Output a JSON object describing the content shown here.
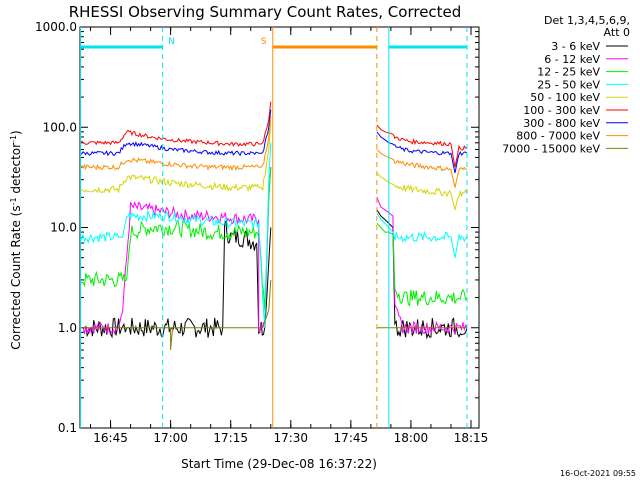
{
  "chart_data": {
    "type": "line",
    "title": "RHESSI Observing Summary Count Rates, Corrected",
    "xlabel": "Start Time (29-Dec-08 16:37:22)",
    "ylabel_main": "Corrected Count Rate (s",
    "ylabel_sup1": "-1",
    "ylabel_mid": " detector",
    "ylabel_sup2": "-1",
    "ylabel_end": ")",
    "y_scale": "log",
    "xlim": [
      "16:37:22",
      "18:17:00"
    ],
    "ylim": [
      0.1,
      1000
    ],
    "x_ticks": [
      "16:45",
      "17:00",
      "17:15",
      "17:30",
      "17:45",
      "18:00",
      "18:15"
    ],
    "y_ticks": [
      "0.1",
      "1.0",
      "10.0",
      "100.0",
      "1000.0"
    ],
    "legend_header": [
      "Det 1,3,4,5,6,9,",
      "Att 0"
    ],
    "legend_position": "top-right, outside plot",
    "timestamp": "16-Oct-2021 09:55",
    "annotations": [
      {
        "label": "N",
        "color": "#00e5ee",
        "time": "16:58:00"
      },
      {
        "label": "S",
        "color": "#ff8c00",
        "time": "17:25:30"
      }
    ],
    "time_bars": [
      {
        "type": "night",
        "color": "#00e5ee",
        "start": "16:37:30",
        "end": "16:58:00",
        "end_style": "dashed"
      },
      {
        "type": "saa",
        "color": "#ff8c00",
        "start": "17:25:30",
        "end": "17:51:30",
        "end_style": "dashed"
      },
      {
        "type": "night",
        "color": "#00e5ee",
        "start": "17:54:30",
        "end": "18:14:00",
        "end_style": "dashed"
      }
    ],
    "series": [
      {
        "name": "3 - 6 keV",
        "color": "#000000",
        "points": [
          [
            "16:37:22",
            1.0
          ],
          [
            "16:38:30",
            1.0
          ],
          [
            "16:47:00",
            1.0
          ],
          [
            "16:49:00",
            1.0
          ],
          [
            "16:50:00",
            1.0
          ],
          [
            "16:53:00",
            1.0
          ],
          [
            "16:56:00",
            1.0
          ],
          [
            "16:59:00",
            1.0
          ],
          [
            "17:02:00",
            1.0
          ],
          [
            "17:05:00",
            1.0
          ],
          [
            "17:08:00",
            1.0
          ],
          [
            "17:11:00",
            1.0
          ],
          [
            "17:13:00",
            1.0
          ],
          [
            "17:13:30",
            10
          ],
          [
            "17:15:00",
            8
          ],
          [
            "17:18:00",
            8
          ],
          [
            "17:20:00",
            7.5
          ],
          [
            "17:21:30",
            7
          ],
          [
            "17:22:00",
            1.0
          ],
          [
            "17:23:30",
            1.0
          ],
          [
            "17:24:00",
            2
          ],
          [
            "17:25:00",
            10
          ]
        ]
      },
      {
        "name": "6 - 12 keV",
        "color": "#ff00ff",
        "points": [
          [
            "16:37:30",
            1.0
          ],
          [
            "16:38:30",
            1.0
          ],
          [
            "16:47:00",
            1.0
          ],
          [
            "16:48:00",
            1.5
          ],
          [
            "16:50:00",
            16
          ],
          [
            "16:55:00",
            15
          ],
          [
            "17:00:00",
            14
          ],
          [
            "17:05:00",
            13
          ],
          [
            "17:10:00",
            13
          ],
          [
            "17:15:00",
            12.5
          ],
          [
            "17:20:00",
            12
          ],
          [
            "17:22:00",
            12
          ],
          [
            "17:22:00",
            1.0
          ],
          [
            "17:23:30",
            1.0
          ],
          [
            "17:24:30",
            20
          ],
          [
            "17:25:00",
            40
          ]
        ]
      },
      {
        "name": "12 - 25 keV",
        "color": "#00ee00",
        "points": [
          [
            "16:37:30",
            3
          ],
          [
            "16:47:00",
            3
          ],
          [
            "16:49:00",
            3
          ],
          [
            "16:50:00",
            9
          ],
          [
            "16:55:00",
            10
          ],
          [
            "17:00:00",
            10
          ],
          [
            "17:05:00",
            9.5
          ],
          [
            "17:10:00",
            9
          ],
          [
            "17:15:00",
            9
          ],
          [
            "17:20:00",
            9
          ],
          [
            "17:22:00",
            9
          ],
          [
            "17:23:30",
            1.5
          ],
          [
            "17:24:30",
            20
          ],
          [
            "17:25:00",
            40
          ]
        ]
      },
      {
        "name": "25 - 50 keV",
        "color": "#00ffff",
        "points": [
          [
            "16:37:30",
            8
          ],
          [
            "16:44:00",
            8
          ],
          [
            "16:47:00",
            8
          ],
          [
            "16:48:00",
            8
          ],
          [
            "16:49:00",
            13
          ],
          [
            "16:55:00",
            13
          ],
          [
            "17:00:00",
            13
          ],
          [
            "17:05:00",
            12
          ],
          [
            "17:10:00",
            11.5
          ],
          [
            "17:15:00",
            11
          ],
          [
            "17:20:00",
            11
          ],
          [
            "17:22:00",
            11
          ],
          [
            "17:23:00",
            2
          ],
          [
            "17:23:30",
            1.0
          ],
          [
            "17:24:30",
            30
          ],
          [
            "17:25:00",
            70
          ]
        ]
      },
      {
        "name": "50 - 100 keV",
        "color": "#d4d400",
        "points": [
          [
            "16:37:30",
            24
          ],
          [
            "16:44:00",
            24
          ],
          [
            "16:47:00",
            24
          ],
          [
            "16:49:00",
            32
          ],
          [
            "16:55:00",
            30
          ],
          [
            "17:00:00",
            28
          ],
          [
            "17:05:00",
            27
          ],
          [
            "17:10:00",
            26
          ],
          [
            "17:15:00",
            25
          ],
          [
            "17:20:00",
            25
          ],
          [
            "17:22:00",
            25
          ],
          [
            "17:23:00",
            25
          ],
          [
            "17:24:30",
            60
          ],
          [
            "17:25:00",
            110
          ]
        ]
      },
      {
        "name": "100 - 300 keV",
        "color": "#ff0000",
        "points": [
          [
            "16:37:30",
            70
          ],
          [
            "16:44:00",
            70
          ],
          [
            "16:47:00",
            70
          ],
          [
            "16:49:00",
            90
          ],
          [
            "16:55:00",
            80
          ],
          [
            "17:00:00",
            75
          ],
          [
            "17:05:00",
            72
          ],
          [
            "17:10:00",
            70
          ],
          [
            "17:15:00",
            68
          ],
          [
            "17:20:00",
            68
          ],
          [
            "17:22:00",
            68
          ],
          [
            "17:23:00",
            68
          ],
          [
            "17:24:30",
            120
          ],
          [
            "17:25:00",
            180
          ]
        ]
      },
      {
        "name": "300 - 800 keV",
        "color": "#0000ff",
        "points": [
          [
            "16:37:30",
            55
          ],
          [
            "16:44:00",
            55
          ],
          [
            "16:47:00",
            55
          ],
          [
            "16:49:00",
            70
          ],
          [
            "16:55:00",
            65
          ],
          [
            "17:00:00",
            60
          ],
          [
            "17:05:00",
            58
          ],
          [
            "17:10:00",
            56
          ],
          [
            "17:15:00",
            55
          ],
          [
            "17:20:00",
            55
          ],
          [
            "17:22:00",
            55
          ],
          [
            "17:23:00",
            55
          ],
          [
            "17:24:30",
            100
          ],
          [
            "17:25:00",
            150
          ]
        ]
      },
      {
        "name": "800 - 7000 keV",
        "color": "#ff8c00",
        "points": [
          [
            "16:37:30",
            40
          ],
          [
            "16:44:00",
            40
          ],
          [
            "16:47:00",
            40
          ],
          [
            "16:49:00",
            48
          ],
          [
            "16:55:00",
            45
          ],
          [
            "17:00:00",
            43
          ],
          [
            "17:05:00",
            41
          ],
          [
            "17:10:00",
            40
          ],
          [
            "17:15:00",
            40
          ],
          [
            "17:20:00",
            40
          ],
          [
            "17:22:00",
            40
          ],
          [
            "17:23:00",
            40
          ],
          [
            "17:24:30",
            80
          ],
          [
            "17:25:00",
            130
          ]
        ]
      },
      {
        "name": "7000 - 15000 keV",
        "color": "#808000",
        "points": [
          [
            "16:37:30",
            1.0
          ],
          [
            "16:47:00",
            1.0
          ],
          [
            "16:50:00",
            1.0
          ],
          [
            "16:55:00",
            1.0
          ],
          [
            "16:58:00",
            1.0
          ],
          [
            "17:00:00",
            1.0
          ],
          [
            "17:00:00",
            0.6
          ],
          [
            "17:00:30",
            1.0
          ],
          [
            "17:05:00",
            1.0
          ],
          [
            "17:10:00",
            1.0
          ],
          [
            "17:15:00",
            1.0
          ],
          [
            "17:20:00",
            1.0
          ],
          [
            "17:22:00",
            1.0
          ],
          [
            "17:23:00",
            1.0
          ],
          [
            "17:24:30",
            1.5
          ],
          [
            "17:25:00",
            3
          ]
        ]
      }
    ],
    "series_after_saa": [
      {
        "name": "3 - 6 keV",
        "points": [
          [
            "17:51:30",
            15
          ],
          [
            "17:52:30",
            13
          ],
          [
            "17:53:30",
            12
          ],
          [
            "17:54:30",
            11
          ],
          [
            "17:55:30",
            10
          ],
          [
            "17:56:00",
            1.0
          ],
          [
            "17:58:00",
            1.0
          ],
          [
            "18:00:00",
            1.0
          ],
          [
            "18:05:00",
            1.0
          ],
          [
            "18:10:00",
            1.0
          ],
          [
            "18:14:00",
            1.0
          ]
        ]
      },
      {
        "name": "6 - 12 keV",
        "points": [
          [
            "17:51:30",
            20
          ],
          [
            "17:52:30",
            16
          ],
          [
            "17:53:30",
            15
          ],
          [
            "17:54:30",
            14
          ],
          [
            "17:55:30",
            13
          ],
          [
            "17:56:00",
            1.5
          ],
          [
            "17:58:00",
            1.0
          ],
          [
            "18:00:00",
            1.0
          ],
          [
            "18:05:00",
            1.0
          ],
          [
            "18:10:00",
            1.0
          ],
          [
            "18:14:00",
            1.0
          ]
        ]
      },
      {
        "name": "12 - 25 keV",
        "points": [
          [
            "17:51:30",
            11
          ],
          [
            "17:52:30",
            10
          ],
          [
            "17:53:30",
            9
          ],
          [
            "17:54:30",
            9
          ],
          [
            "17:55:30",
            8.5
          ],
          [
            "17:56:00",
            2.5
          ],
          [
            "17:58:00",
            2
          ],
          [
            "18:00:00",
            2
          ],
          [
            "18:05:00",
            2
          ],
          [
            "18:10:00",
            2
          ],
          [
            "18:14:00",
            2
          ]
        ]
      },
      {
        "name": "25 - 50 keV",
        "points": [
          [
            "17:51:30",
            14
          ],
          [
            "17:52:30",
            12
          ],
          [
            "17:53:30",
            11
          ],
          [
            "17:54:30",
            10
          ],
          [
            "17:55:30",
            9
          ],
          [
            "17:56:00",
            8
          ],
          [
            "17:58:00",
            8
          ],
          [
            "18:00:00",
            8
          ],
          [
            "18:05:00",
            8
          ],
          [
            "18:10:00",
            8
          ],
          [
            "18:11:00",
            5
          ],
          [
            "18:12:00",
            8
          ],
          [
            "18:14:00",
            8
          ]
        ]
      },
      {
        "name": "50 - 100 keV",
        "points": [
          [
            "17:51:30",
            35
          ],
          [
            "17:52:30",
            32
          ],
          [
            "17:53:30",
            30
          ],
          [
            "17:54:30",
            28
          ],
          [
            "17:55:30",
            27
          ],
          [
            "17:56:00",
            26
          ],
          [
            "17:58:00",
            25
          ],
          [
            "18:00:00",
            24
          ],
          [
            "18:05:00",
            23
          ],
          [
            "18:10:00",
            22
          ],
          [
            "18:11:00",
            15
          ],
          [
            "18:12:00",
            22
          ],
          [
            "18:14:00",
            22
          ]
        ]
      },
      {
        "name": "100 - 300 keV",
        "points": [
          [
            "17:51:30",
            105
          ],
          [
            "17:52:30",
            95
          ],
          [
            "17:53:30",
            90
          ],
          [
            "17:54:30",
            88
          ],
          [
            "17:55:30",
            85
          ],
          [
            "17:56:00",
            80
          ],
          [
            "17:58:00",
            75
          ],
          [
            "18:00:00",
            72
          ],
          [
            "18:05:00",
            70
          ],
          [
            "18:10:00",
            68
          ],
          [
            "18:11:00",
            40
          ],
          [
            "18:12:00",
            62
          ],
          [
            "18:14:00",
            62
          ]
        ]
      },
      {
        "name": "300 - 800 keV",
        "points": [
          [
            "17:51:30",
            90
          ],
          [
            "17:52:30",
            80
          ],
          [
            "17:53:30",
            75
          ],
          [
            "17:54:30",
            70
          ],
          [
            "17:55:30",
            68
          ],
          [
            "17:56:00",
            65
          ],
          [
            "17:58:00",
            60
          ],
          [
            "18:00:00",
            58
          ],
          [
            "18:05:00",
            56
          ],
          [
            "18:10:00",
            55
          ],
          [
            "18:11:00",
            35
          ],
          [
            "18:12:00",
            55
          ],
          [
            "18:14:00",
            55
          ]
        ]
      },
      {
        "name": "800 - 7000 keV",
        "points": [
          [
            "17:51:30",
            60
          ],
          [
            "17:52:30",
            55
          ],
          [
            "17:53:30",
            52
          ],
          [
            "17:54:30",
            50
          ],
          [
            "17:55:30",
            48
          ],
          [
            "17:56:00",
            46
          ],
          [
            "17:58:00",
            44
          ],
          [
            "18:00:00",
            42
          ],
          [
            "18:05:00",
            40
          ],
          [
            "18:10:00",
            38
          ],
          [
            "18:11:00",
            25
          ],
          [
            "18:12:00",
            38
          ],
          [
            "18:14:00",
            38
          ]
        ]
      },
      {
        "name": "7000 - 15000 keV",
        "points": [
          [
            "17:51:30",
            1.0
          ],
          [
            "17:56:00",
            1.0
          ],
          [
            "18:00:00",
            1.0
          ],
          [
            "18:05:00",
            1.0
          ],
          [
            "18:10:00",
            1.0
          ],
          [
            "18:14:00",
            1.0
          ]
        ]
      }
    ]
  }
}
